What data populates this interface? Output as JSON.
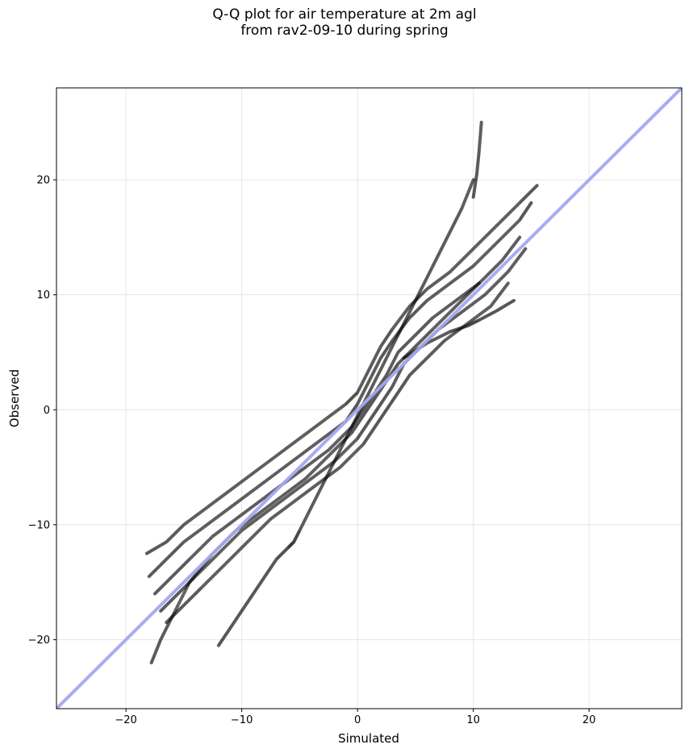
{
  "chart_data": {
    "type": "scatter",
    "title_line1": "Q-Q plot for air temperature at 2m agl",
    "title_line2": "from rav2-09-10 during spring",
    "xlabel": "Simulated",
    "ylabel": "Observed",
    "xlim": [
      -26,
      28
    ],
    "ylim": [
      -26,
      28
    ],
    "xticks": [
      -20,
      -10,
      0,
      10,
      20
    ],
    "yticks": [
      -20,
      -10,
      0,
      10,
      20
    ],
    "xtick_labels": [
      "−20",
      "−10",
      "0",
      "10",
      "20"
    ],
    "ytick_labels": [
      "−20",
      "−10",
      "0",
      "10",
      "20"
    ],
    "grid": true,
    "reference_line": {
      "x": [
        -26,
        28
      ],
      "y": [
        -26,
        28
      ],
      "color": "#a5a8f0"
    },
    "point_color": "#000000",
    "series": [
      {
        "x": [
          -18.2,
          -16.5,
          -15.0,
          -13.0,
          -11.0,
          -9.0,
          -7.0,
          -5.0,
          -3.0,
          -1.0,
          0.0,
          1.0,
          2.0,
          3.0,
          4.5,
          6.0,
          8.0,
          10.0,
          12.0,
          14.0,
          15.5
        ],
        "y": [
          -12.5,
          -11.5,
          -10.0,
          -8.5,
          -7.0,
          -5.5,
          -4.0,
          -2.5,
          -1.0,
          0.5,
          1.5,
          3.5,
          5.5,
          7.0,
          9.0,
          10.5,
          12.0,
          14.0,
          16.0,
          18.0,
          19.5
        ]
      },
      {
        "x": [
          -18.0,
          -16.5,
          -15.0,
          -13.0,
          -11.0,
          -9.0,
          -7.0,
          -5.0,
          -3.0,
          -1.0,
          0.0,
          1.0,
          2.0,
          3.0,
          4.5,
          6.0,
          8.0,
          10.0,
          12.0,
          14.0,
          15.0
        ],
        "y": [
          -14.5,
          -13.0,
          -11.5,
          -10.0,
          -8.5,
          -7.0,
          -5.5,
          -4.0,
          -2.5,
          -1.0,
          0.5,
          2.5,
          4.5,
          6.0,
          8.0,
          9.5,
          11.0,
          12.5,
          14.5,
          16.5,
          18.0
        ]
      },
      {
        "x": [
          -17.5,
          -16.0,
          -14.5,
          -12.5,
          -10.5,
          -8.5,
          -6.5,
          -4.5,
          -2.5,
          -0.5,
          0.5,
          1.5,
          2.5,
          3.5,
          5.0,
          6.5,
          8.5,
          10.5,
          12.5,
          14.0
        ],
        "y": [
          -16.0,
          -14.5,
          -13.0,
          -11.0,
          -9.5,
          -8.0,
          -6.5,
          -5.0,
          -3.5,
          -1.5,
          0.0,
          1.5,
          3.0,
          5.0,
          6.5,
          8.0,
          9.5,
          11.0,
          13.0,
          15.0
        ]
      },
      {
        "x": [
          -17.0,
          -15.5,
          -14.0,
          -12.0,
          -10.0,
          -8.0,
          -6.0,
          -4.0,
          -2.0,
          0.0,
          1.0,
          2.0,
          3.0,
          4.0,
          5.5,
          7.0,
          9.0,
          11.0,
          13.0,
          14.5
        ],
        "y": [
          -17.5,
          -16.0,
          -14.5,
          -12.5,
          -10.5,
          -9.0,
          -7.5,
          -6.0,
          -4.5,
          -2.5,
          -1.0,
          0.5,
          2.0,
          4.0,
          5.5,
          7.0,
          8.5,
          10.0,
          12.0,
          14.0
        ]
      },
      {
        "x": [
          -16.5,
          -15.0,
          -13.5,
          -11.5,
          -9.5,
          -7.5,
          -5.5,
          -3.5,
          -1.5,
          0.5,
          1.5,
          2.5,
          3.5,
          4.5,
          6.0,
          7.5,
          9.5,
          11.5,
          13.0
        ],
        "y": [
          -18.5,
          -17.0,
          -15.5,
          -13.5,
          -11.5,
          -9.5,
          -8.0,
          -6.5,
          -5.0,
          -3.0,
          -1.5,
          0.0,
          1.5,
          3.0,
          4.5,
          6.0,
          7.5,
          9.0,
          11.0
        ]
      },
      {
        "x": [
          -17.8,
          -17.0,
          -16.0,
          -14.5,
          -12.5,
          -10.5,
          -8.5,
          -6.5,
          -4.5,
          -2.5,
          -0.5,
          0.5,
          1.5,
          2.5,
          3.5,
          5.0,
          6.5,
          8.5,
          10.5
        ],
        "y": [
          -22.0,
          -20.0,
          -18.0,
          -15.0,
          -12.5,
          -10.5,
          -9.0,
          -7.5,
          -6.0,
          -4.0,
          -2.0,
          -0.5,
          1.0,
          2.5,
          4.0,
          5.5,
          7.0,
          9.0,
          11.0
        ]
      },
      {
        "x": [
          -12.0,
          -11.0,
          -10.0,
          -9.0,
          -8.0,
          -7.0,
          -6.0,
          -5.5,
          -5.0,
          -4.0,
          -3.0,
          -2.0,
          -1.0,
          0.0,
          1.0,
          2.0,
          3.0,
          4.0,
          5.0,
          6.0,
          7.0,
          8.0,
          9.0,
          10.0
        ],
        "y": [
          -20.5,
          -19.0,
          -17.5,
          -16.0,
          -14.5,
          -13.0,
          -12.0,
          -11.5,
          -10.5,
          -8.5,
          -6.5,
          -4.5,
          -2.5,
          -0.5,
          1.5,
          3.5,
          5.5,
          7.5,
          9.5,
          11.5,
          13.5,
          15.5,
          17.5,
          20.0
        ]
      },
      {
        "x": [
          4.0,
          6.0,
          8.0,
          9.5,
          10.5,
          12.0,
          13.5
        ],
        "y": [
          4.5,
          5.8,
          6.8,
          7.3,
          7.8,
          8.6,
          9.5
        ]
      },
      {
        "x": [
          10.0,
          10.3,
          10.5,
          10.7
        ],
        "y": [
          18.5,
          20.5,
          22.5,
          25.0
        ]
      }
    ]
  }
}
